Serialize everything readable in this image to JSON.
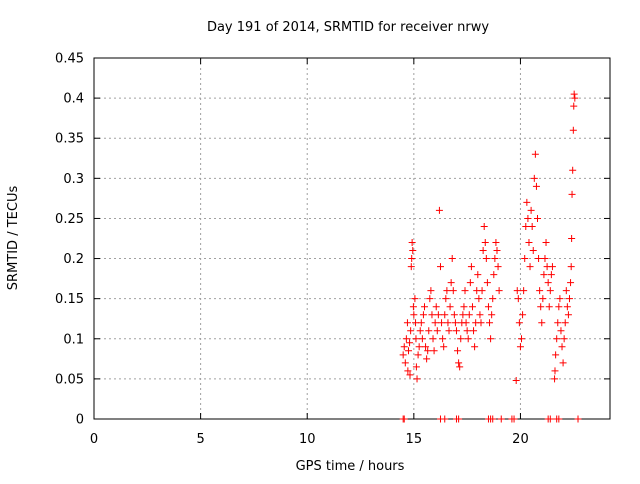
{
  "chart_data": {
    "type": "scatter",
    "title": "Day 191 of 2014, SRMTID for receiver nrwy",
    "xlabel": "GPS time / hours",
    "ylabel": "SRMTID / TECUs",
    "xlim": [
      0,
      24.2
    ],
    "ylim": [
      0,
      0.45
    ],
    "grid": true,
    "marker": "plus",
    "color": "#ff0000",
    "x_ticks": [
      0,
      5,
      10,
      15,
      20
    ],
    "x_tick_labels": [
      "0",
      "5",
      "10",
      "15",
      "20"
    ],
    "y_ticks": [
      0,
      0.05,
      0.1,
      0.15,
      0.2,
      0.25,
      0.3,
      0.35,
      0.4,
      0.45
    ],
    "y_tick_labels": [
      "0",
      "0.05",
      "0.1",
      "0.15",
      "0.2",
      "0.25",
      "0.3",
      "0.35",
      "0.4",
      "0.45"
    ],
    "series": [
      {
        "name": "SRMTID",
        "points": [
          [
            14.5,
            0.0
          ],
          [
            14.55,
            0.0
          ],
          [
            16.25,
            0.0
          ],
          [
            16.45,
            0.0
          ],
          [
            17.0,
            0.0
          ],
          [
            17.1,
            0.0
          ],
          [
            18.5,
            0.0
          ],
          [
            18.6,
            0.0
          ],
          [
            18.7,
            0.0
          ],
          [
            19.1,
            0.0
          ],
          [
            19.6,
            0.0
          ],
          [
            19.7,
            0.0
          ],
          [
            21.3,
            0.0
          ],
          [
            21.4,
            0.0
          ],
          [
            21.7,
            0.0
          ],
          [
            21.8,
            0.0
          ],
          [
            22.7,
            0.0
          ],
          [
            14.5,
            0.08
          ],
          [
            14.55,
            0.09
          ],
          [
            14.6,
            0.07
          ],
          [
            14.65,
            0.1
          ],
          [
            14.7,
            0.12
          ],
          [
            14.72,
            0.06
          ],
          [
            14.75,
            0.085
          ],
          [
            14.8,
            0.095
          ],
          [
            14.82,
            0.055
          ],
          [
            14.85,
            0.11
          ],
          [
            14.88,
            0.19
          ],
          [
            14.9,
            0.2
          ],
          [
            14.92,
            0.22
          ],
          [
            14.95,
            0.21
          ],
          [
            14.98,
            0.14
          ],
          [
            15.0,
            0.13
          ],
          [
            15.05,
            0.15
          ],
          [
            15.08,
            0.12
          ],
          [
            15.1,
            0.1
          ],
          [
            15.12,
            0.065
          ],
          [
            15.15,
            0.05
          ],
          [
            15.2,
            0.08
          ],
          [
            15.25,
            0.09
          ],
          [
            15.3,
            0.11
          ],
          [
            15.35,
            0.12
          ],
          [
            15.4,
            0.1
          ],
          [
            15.45,
            0.13
          ],
          [
            15.5,
            0.14
          ],
          [
            15.55,
            0.09
          ],
          [
            15.6,
            0.075
          ],
          [
            15.65,
            0.085
          ],
          [
            15.7,
            0.11
          ],
          [
            15.75,
            0.15
          ],
          [
            15.8,
            0.16
          ],
          [
            15.85,
            0.13
          ],
          [
            15.9,
            0.1
          ],
          [
            15.95,
            0.085
          ],
          [
            16.0,
            0.12
          ],
          [
            16.05,
            0.14
          ],
          [
            16.1,
            0.11
          ],
          [
            16.15,
            0.13
          ],
          [
            16.2,
            0.26
          ],
          [
            16.25,
            0.19
          ],
          [
            16.3,
            0.12
          ],
          [
            16.35,
            0.1
          ],
          [
            16.4,
            0.09
          ],
          [
            16.45,
            0.13
          ],
          [
            16.5,
            0.15
          ],
          [
            16.55,
            0.16
          ],
          [
            16.6,
            0.12
          ],
          [
            16.65,
            0.11
          ],
          [
            16.7,
            0.14
          ],
          [
            16.75,
            0.17
          ],
          [
            16.8,
            0.2
          ],
          [
            16.85,
            0.16
          ],
          [
            16.9,
            0.13
          ],
          [
            16.95,
            0.12
          ],
          [
            17.0,
            0.11
          ],
          [
            17.05,
            0.085
          ],
          [
            17.1,
            0.07
          ],
          [
            17.15,
            0.065
          ],
          [
            17.2,
            0.1
          ],
          [
            17.25,
            0.12
          ],
          [
            17.3,
            0.13
          ],
          [
            17.35,
            0.14
          ],
          [
            17.4,
            0.16
          ],
          [
            17.45,
            0.12
          ],
          [
            17.5,
            0.11
          ],
          [
            17.55,
            0.1
          ],
          [
            17.6,
            0.13
          ],
          [
            17.65,
            0.17
          ],
          [
            17.7,
            0.19
          ],
          [
            17.75,
            0.14
          ],
          [
            17.8,
            0.11
          ],
          [
            17.85,
            0.09
          ],
          [
            17.9,
            0.12
          ],
          [
            17.95,
            0.16
          ],
          [
            18.0,
            0.18
          ],
          [
            18.05,
            0.15
          ],
          [
            18.1,
            0.13
          ],
          [
            18.15,
            0.12
          ],
          [
            18.2,
            0.16
          ],
          [
            18.25,
            0.21
          ],
          [
            18.3,
            0.24
          ],
          [
            18.35,
            0.22
          ],
          [
            18.4,
            0.2
          ],
          [
            18.45,
            0.17
          ],
          [
            18.5,
            0.14
          ],
          [
            18.55,
            0.12
          ],
          [
            18.6,
            0.1
          ],
          [
            18.65,
            0.13
          ],
          [
            18.7,
            0.15
          ],
          [
            18.75,
            0.18
          ],
          [
            18.8,
            0.2
          ],
          [
            18.85,
            0.22
          ],
          [
            18.9,
            0.21
          ],
          [
            18.95,
            0.19
          ],
          [
            19.0,
            0.16
          ],
          [
            19.8,
            0.048
          ],
          [
            19.85,
            0.16
          ],
          [
            19.9,
            0.15
          ],
          [
            19.95,
            0.12
          ],
          [
            20.0,
            0.09
          ],
          [
            20.05,
            0.1
          ],
          [
            20.1,
            0.13
          ],
          [
            20.15,
            0.16
          ],
          [
            20.2,
            0.2
          ],
          [
            20.25,
            0.24
          ],
          [
            20.3,
            0.27
          ],
          [
            20.35,
            0.25
          ],
          [
            20.4,
            0.22
          ],
          [
            20.45,
            0.19
          ],
          [
            20.5,
            0.26
          ],
          [
            20.55,
            0.24
          ],
          [
            20.6,
            0.21
          ],
          [
            20.65,
            0.3
          ],
          [
            20.7,
            0.33
          ],
          [
            20.75,
            0.29
          ],
          [
            20.8,
            0.25
          ],
          [
            20.85,
            0.2
          ],
          [
            20.9,
            0.16
          ],
          [
            20.95,
            0.14
          ],
          [
            21.0,
            0.12
          ],
          [
            21.05,
            0.15
          ],
          [
            21.1,
            0.18
          ],
          [
            21.15,
            0.2
          ],
          [
            21.2,
            0.22
          ],
          [
            21.25,
            0.19
          ],
          [
            21.3,
            0.17
          ],
          [
            21.35,
            0.14
          ],
          [
            21.4,
            0.16
          ],
          [
            21.45,
            0.18
          ],
          [
            21.5,
            0.19
          ],
          [
            21.6,
            0.05
          ],
          [
            21.62,
            0.06
          ],
          [
            21.65,
            0.08
          ],
          [
            21.7,
            0.1
          ],
          [
            21.75,
            0.12
          ],
          [
            21.8,
            0.14
          ],
          [
            21.85,
            0.15
          ],
          [
            21.9,
            0.11
          ],
          [
            21.95,
            0.09
          ],
          [
            22.0,
            0.07
          ],
          [
            22.05,
            0.1
          ],
          [
            22.1,
            0.12
          ],
          [
            22.15,
            0.16
          ],
          [
            22.2,
            0.14
          ],
          [
            22.25,
            0.13
          ],
          [
            22.3,
            0.15
          ],
          [
            22.35,
            0.17
          ],
          [
            22.38,
            0.19
          ],
          [
            22.4,
            0.225
          ],
          [
            22.42,
            0.28
          ],
          [
            22.45,
            0.31
          ],
          [
            22.48,
            0.36
          ],
          [
            22.5,
            0.39
          ],
          [
            22.52,
            0.405
          ],
          [
            22.55,
            0.4
          ]
        ]
      }
    ]
  }
}
